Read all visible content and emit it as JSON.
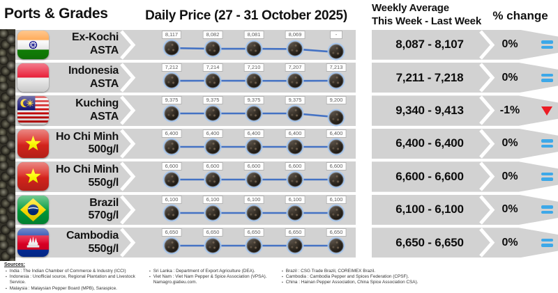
{
  "header": {
    "ports_grades": "Ports & Grades",
    "daily_price_title": "Daily Price (27 - 31 October 2025)",
    "weekly_average_line1": "Weekly Average",
    "weekly_average_line2": "This Week - Last Week",
    "percent_change": "% change"
  },
  "chart_data": {
    "type": "line",
    "title": "Daily Price (27 - 31 October 2025)",
    "legend_position": "none",
    "grid": false,
    "line_color": "#4472c4",
    "rows": [
      {
        "port": "Ex-Kochi",
        "grade": "ASTA",
        "flag": "india",
        "values": [
          8117,
          8082,
          8081,
          8069,
          null
        ],
        "point_labels": [
          "8,117",
          "8,082",
          "8,081",
          "8,069",
          "-"
        ],
        "weekly_average": "8,087 - 8,107",
        "percent_change": "0%",
        "trend": "equal"
      },
      {
        "port": "Indonesia",
        "grade": "ASTA",
        "flag": "indonesia",
        "values": [
          7212,
          7214,
          7210,
          7207,
          7213
        ],
        "point_labels": [
          "7,212",
          "7,214",
          "7,210",
          "7,207",
          "7,213"
        ],
        "weekly_average": "7,211 - 7,218",
        "percent_change": "0%",
        "trend": "equal"
      },
      {
        "port": "Kuching",
        "grade": "ASTA",
        "flag": "malaysia",
        "values": [
          9375,
          9375,
          9375,
          9375,
          9200
        ],
        "point_labels": [
          "9,375",
          "9,375",
          "9,375",
          "9,375",
          "9,200"
        ],
        "weekly_average": "9,340 - 9,413",
        "percent_change": "-1%",
        "trend": "down"
      },
      {
        "port": "Ho Chi Minh",
        "grade": "500g/l",
        "flag": "vietnam",
        "values": [
          6400,
          6400,
          6400,
          6400,
          6400
        ],
        "point_labels": [
          "6,400",
          "6,400",
          "6,400",
          "6,400",
          "6,400"
        ],
        "weekly_average": "6,400 - 6,400",
        "percent_change": "0%",
        "trend": "equal"
      },
      {
        "port": "Ho Chi Minh",
        "grade": "550g/l",
        "flag": "vietnam",
        "values": [
          6600,
          6600,
          6600,
          6600,
          6600
        ],
        "point_labels": [
          "6,600",
          "6,600",
          "6,600",
          "6,600",
          "6,600"
        ],
        "weekly_average": "6,600 - 6,600",
        "percent_change": "0%",
        "trend": "equal"
      },
      {
        "port": "Brazil",
        "grade": "570g/l",
        "flag": "brazil",
        "values": [
          6100,
          6100,
          6100,
          6100,
          6100
        ],
        "point_labels": [
          "6,100",
          "6,100",
          "6,100",
          "6,100",
          "6,100"
        ],
        "weekly_average": "6,100 - 6,100",
        "percent_change": "0%",
        "trend": "equal"
      },
      {
        "port": "Cambodia",
        "grade": "550g/l",
        "flag": "cambodia",
        "values": [
          6650,
          6650,
          6650,
          6650,
          6650
        ],
        "point_labels": [
          "6,650",
          "6,650",
          "6,650",
          "6,650",
          "6,650"
        ],
        "weekly_average": "6,650 - 6,650",
        "percent_change": "0%",
        "trend": "equal"
      }
    ]
  },
  "colors": {
    "row_background": "#d2d2d2",
    "chart_line": "#4472c4",
    "marker_ring": "#a9c7ec",
    "trend_equal": "#3da8e8",
    "trend_down": "#ec1c24"
  },
  "icons": {
    "equal": "equal-bars-icon",
    "down": "down-triangle-icon"
  },
  "sources": {
    "label": "Sources:",
    "col1": [
      "India : The Indian Chamber of Commerce & Industry (ICCI)",
      "Indonesia : Unofficial source, Regional Plantation and Livestock Service.",
      "Malaysia : Malaysian Pepper Board (MPB), Saraspice."
    ],
    "col2": [
      "Sri Lanka : Department of Export Agriculture (DEA).",
      "Viet Nam : Viet Nam Pepper & Spice Association (VPSA). Namagro.giatieu.com."
    ],
    "col3": [
      "Brazil : CSG Trade Brazil, COREIMEX Brazil.",
      "Cambodia : Cambodia Pepper and Spices Federation (CPSF).",
      "China : Hainan Pepper Association, China Spice Association CSA)."
    ]
  }
}
